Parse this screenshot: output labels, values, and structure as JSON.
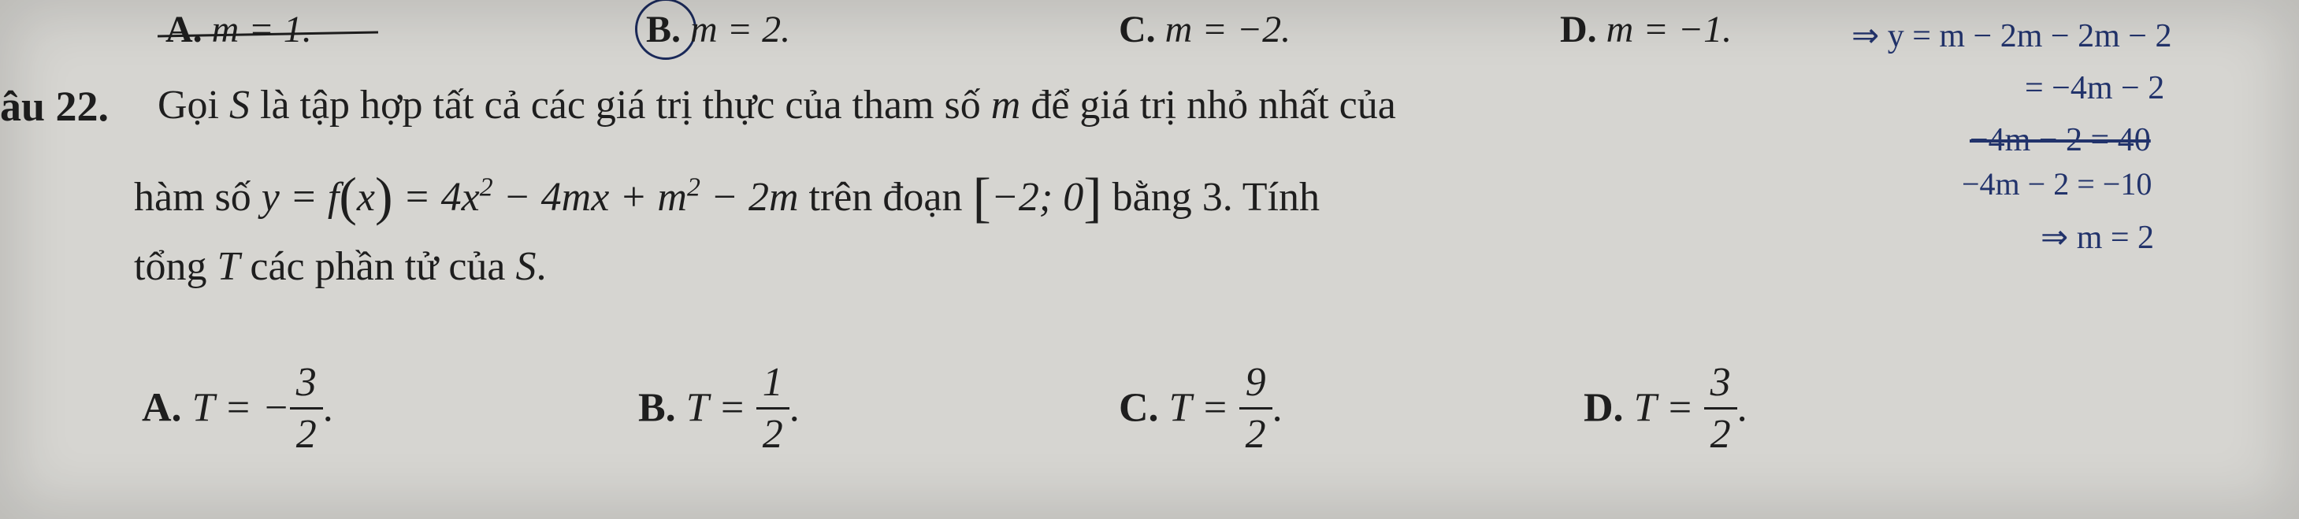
{
  "colors": {
    "paper_bg": "#d6d5d1",
    "ink": "#1e1e1e",
    "pen": "#22336b"
  },
  "fonts": {
    "print_family": "Times New Roman",
    "print_size_body_pt": 39,
    "print_size_label_pt": 40,
    "hand_family": "Comic Sans MS",
    "hand_size_pt": 32
  },
  "prev_question": {
    "A": {
      "letter": "A.",
      "math": "m = 1.",
      "struck": true
    },
    "B": {
      "letter": "B.",
      "math": "m = 2.",
      "circled": true
    },
    "C": {
      "letter": "C.",
      "math": "m = −2."
    },
    "D": {
      "letter": "D.",
      "math": "m = −1."
    }
  },
  "question": {
    "label": "âu 22.",
    "line1_a": "Gọi ",
    "line1_S": "S",
    "line1_b": " là tập hợp tất cả các giá trị thực của tham số ",
    "line1_m": "m",
    "line1_c": " để giá trị nhỏ nhất của",
    "line2_a": "hàm số  ",
    "line2_eq_lhs": "y = f",
    "line2_eq_x": "x",
    "line2_eq_rhs": " = 4x",
    "line2_sq1": "2",
    "line2_eq_rhs2": " − 4mx + m",
    "line2_sq2": "2",
    "line2_eq_rhs3": " − 2m",
    "line2_b": "  trên đoạn  ",
    "line2_interval_l": "−2; 0",
    "line2_c": "  bằng 3. Tính",
    "line3_a": "tổng ",
    "line3_T": "T",
    "line3_b": " các phần tử của ",
    "line3_S": "S",
    "line3_c": "."
  },
  "answers": {
    "A": {
      "letter": "A.",
      "prefix": "T = −",
      "num": "3",
      "den": "2",
      "suffix": "."
    },
    "B": {
      "letter": "B.",
      "prefix": "T = ",
      "num": "1",
      "den": "2",
      "suffix": "."
    },
    "C": {
      "letter": "C.",
      "prefix": "T = ",
      "num": "9",
      "den": "2",
      "suffix": "."
    },
    "D": {
      "letter": "D.",
      "prefix": "T = ",
      "num": "3",
      "den": "2",
      "suffix": "."
    }
  },
  "handwriting": {
    "h1": "⇒ y = m − 2m − 2m − 2",
    "h2": "= −4m − 2",
    "h3": "−4m − 2 = 40",
    "h4": "−4m − 2 = −10",
    "h5": "⇒ m = 2"
  }
}
